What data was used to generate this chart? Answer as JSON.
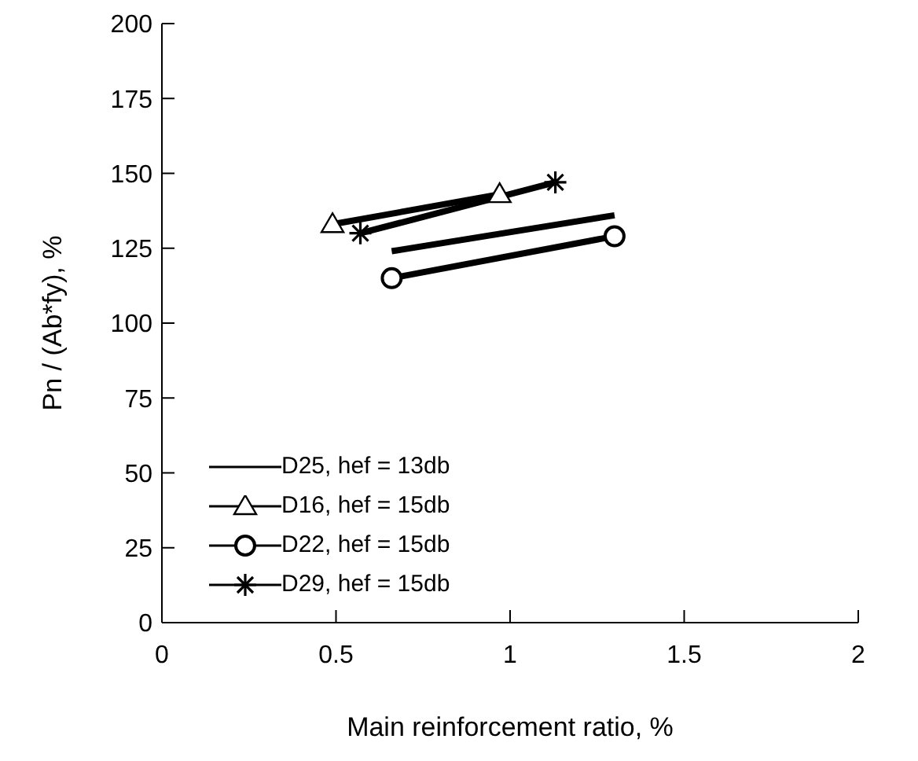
{
  "chart_data": {
    "type": "line",
    "xlabel": "Main reinforcement ratio, %",
    "ylabel": "Pn / (Ab*fy), %",
    "xlim": [
      0,
      2
    ],
    "xticks": [
      0,
      0.5,
      1,
      1.5,
      2
    ],
    "ylim": [
      0,
      200
    ],
    "yticks": [
      0,
      25,
      50,
      75,
      100,
      125,
      150,
      175,
      200
    ],
    "grid": false,
    "legend": "bottom left",
    "series": [
      {
        "name": "D25, hef = 13db",
        "color": "#000000",
        "marker": "none",
        "x": [
          0.66,
          1.3
        ],
        "values": [
          124,
          136
        ]
      },
      {
        "name": "D16, hef = 15db",
        "color": "#000000",
        "marker": "triangle",
        "x": [
          0.49,
          0.97
        ],
        "values": [
          133,
          143
        ]
      },
      {
        "name": "D22, hef = 15db",
        "color": "#000000",
        "marker": "circle",
        "x": [
          0.66,
          1.3
        ],
        "values": [
          115,
          129
        ]
      },
      {
        "name": "D29, hef = 15db",
        "color": "#000000",
        "marker": "cross",
        "x": [
          0.57,
          1.13
        ],
        "values": [
          130,
          147
        ]
      }
    ]
  }
}
